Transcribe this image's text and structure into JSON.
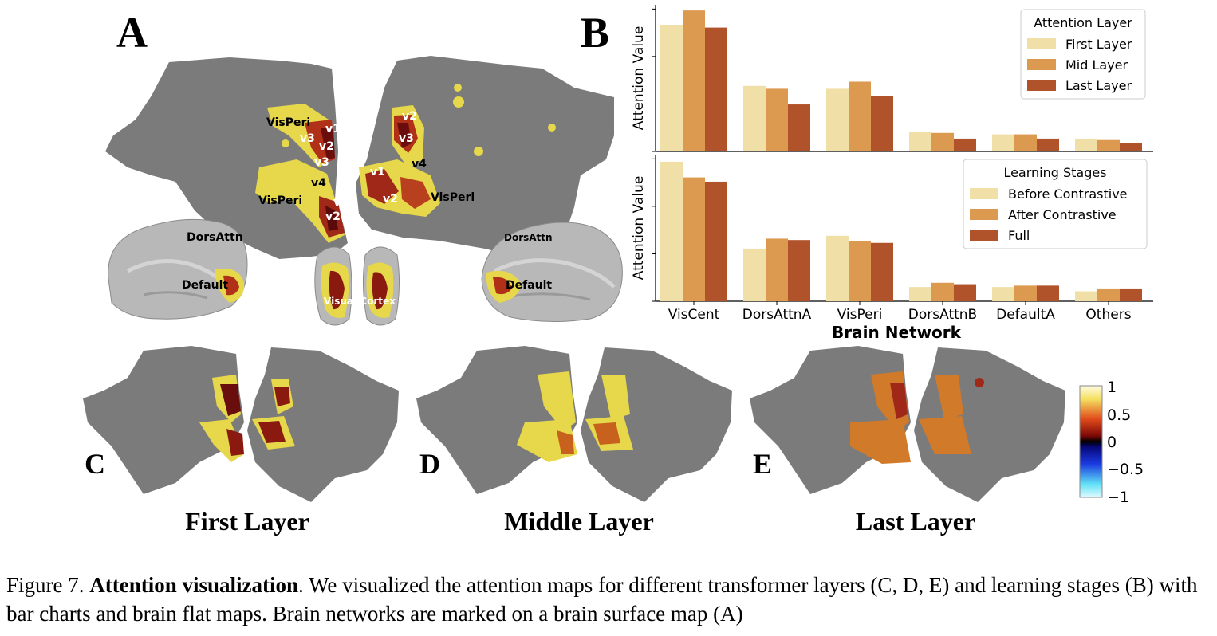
{
  "panels": {
    "a": "A",
    "b": "B",
    "c": "C",
    "d": "D",
    "e": "E"
  },
  "panel_a_labels": {
    "vis_peri_left_top": "VisPeri",
    "v1_left_top": "v1",
    "v3_left_a": "v3",
    "v2_left_a": "v2",
    "v3_left_b": "v3",
    "v4_left": "v4",
    "vis_peri_left_bottom": "VisPeri",
    "v1_left_b": "v1",
    "v2_left_b": "v2",
    "v2_right_top": "v2",
    "v3_right": "v3",
    "v4_right": "v4",
    "v1_right": "v1",
    "v2_right_b": "v2",
    "vis_peri_right": "VisPeri",
    "dors_attn_left": "DorsAttn",
    "default_left": "Default",
    "dors_attn_right": "DorsAttn",
    "default_right": "Default",
    "visual_cortex": "Visual Cortex"
  },
  "layer_titles": {
    "first": "First Layer",
    "middle": "Middle Layer",
    "last": "Last Layer"
  },
  "colorbar": {
    "ticks": [
      "1",
      "0.5",
      "0",
      "−0.5",
      "−1"
    ]
  },
  "caption": {
    "prefix": "Figure 7. ",
    "bold": "Attention visualization",
    "rest": ". We visualized the attention maps for different transformer layers (C, D, E) and learning stages (B) with bar charts and brain flat maps. Brain networks are marked on a brain surface map (A)"
  },
  "chart_data": [
    {
      "type": "bar",
      "categories": [
        "VisCent",
        "DorsAttnA",
        "VisPeri",
        "DorsAttnB",
        "DefaultA",
        "Others"
      ],
      "series": [
        {
          "name": "First Layer",
          "values": [
            0.89,
            0.46,
            0.44,
            0.14,
            0.12,
            0.09
          ]
        },
        {
          "name": "Mid Layer",
          "values": [
            0.99,
            0.44,
            0.49,
            0.13,
            0.12,
            0.08
          ]
        },
        {
          "name": "Last Layer",
          "values": [
            0.87,
            0.33,
            0.39,
            0.09,
            0.09,
            0.06
          ]
        }
      ],
      "ylabel": "Attention Value",
      "ylim": [
        0,
        1.03
      ],
      "legend_title": "Attention Layer",
      "legend_position": "top-right",
      "colors": [
        "#f0dfa6",
        "#dc9a50",
        "#b0522a"
      ]
    },
    {
      "type": "bar",
      "categories": [
        "VisCent",
        "DorsAttnA",
        "VisPeri",
        "DorsAttnB",
        "DefaultA",
        "Others"
      ],
      "series": [
        {
          "name": "Before Contrastive",
          "values": [
            0.98,
            0.37,
            0.46,
            0.1,
            0.1,
            0.07
          ]
        },
        {
          "name": "After Contrastive",
          "values": [
            0.87,
            0.44,
            0.42,
            0.13,
            0.11,
            0.09
          ]
        },
        {
          "name": "Full",
          "values": [
            0.84,
            0.43,
            0.41,
            0.12,
            0.11,
            0.09
          ]
        }
      ],
      "xlabel": "Brain Network",
      "ylabel": "Attention Value",
      "ylim": [
        0,
        1.03
      ],
      "legend_title": "Learning Stages",
      "legend_position": "top-right",
      "colors": [
        "#f0dfa6",
        "#dc9a50",
        "#b0522a"
      ]
    }
  ]
}
